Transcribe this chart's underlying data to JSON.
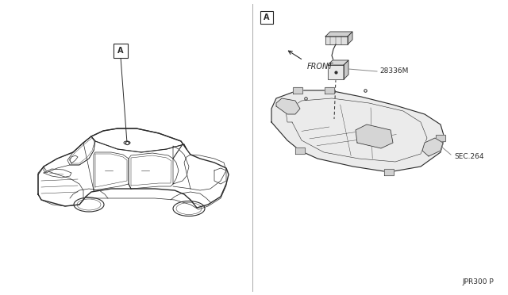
{
  "background_color": "#ffffff",
  "line_color": "#2a2a2a",
  "gray_line": "#888888",
  "thin_line": 0.5,
  "med_line": 0.8,
  "thick_line": 1.0,
  "page_ref": "JPR300 P",
  "part_label_A": "A",
  "part_number": "28336M",
  "sec_label": "SEC.264",
  "front_label": "FRONT",
  "fig_width": 6.4,
  "fig_height": 3.72
}
